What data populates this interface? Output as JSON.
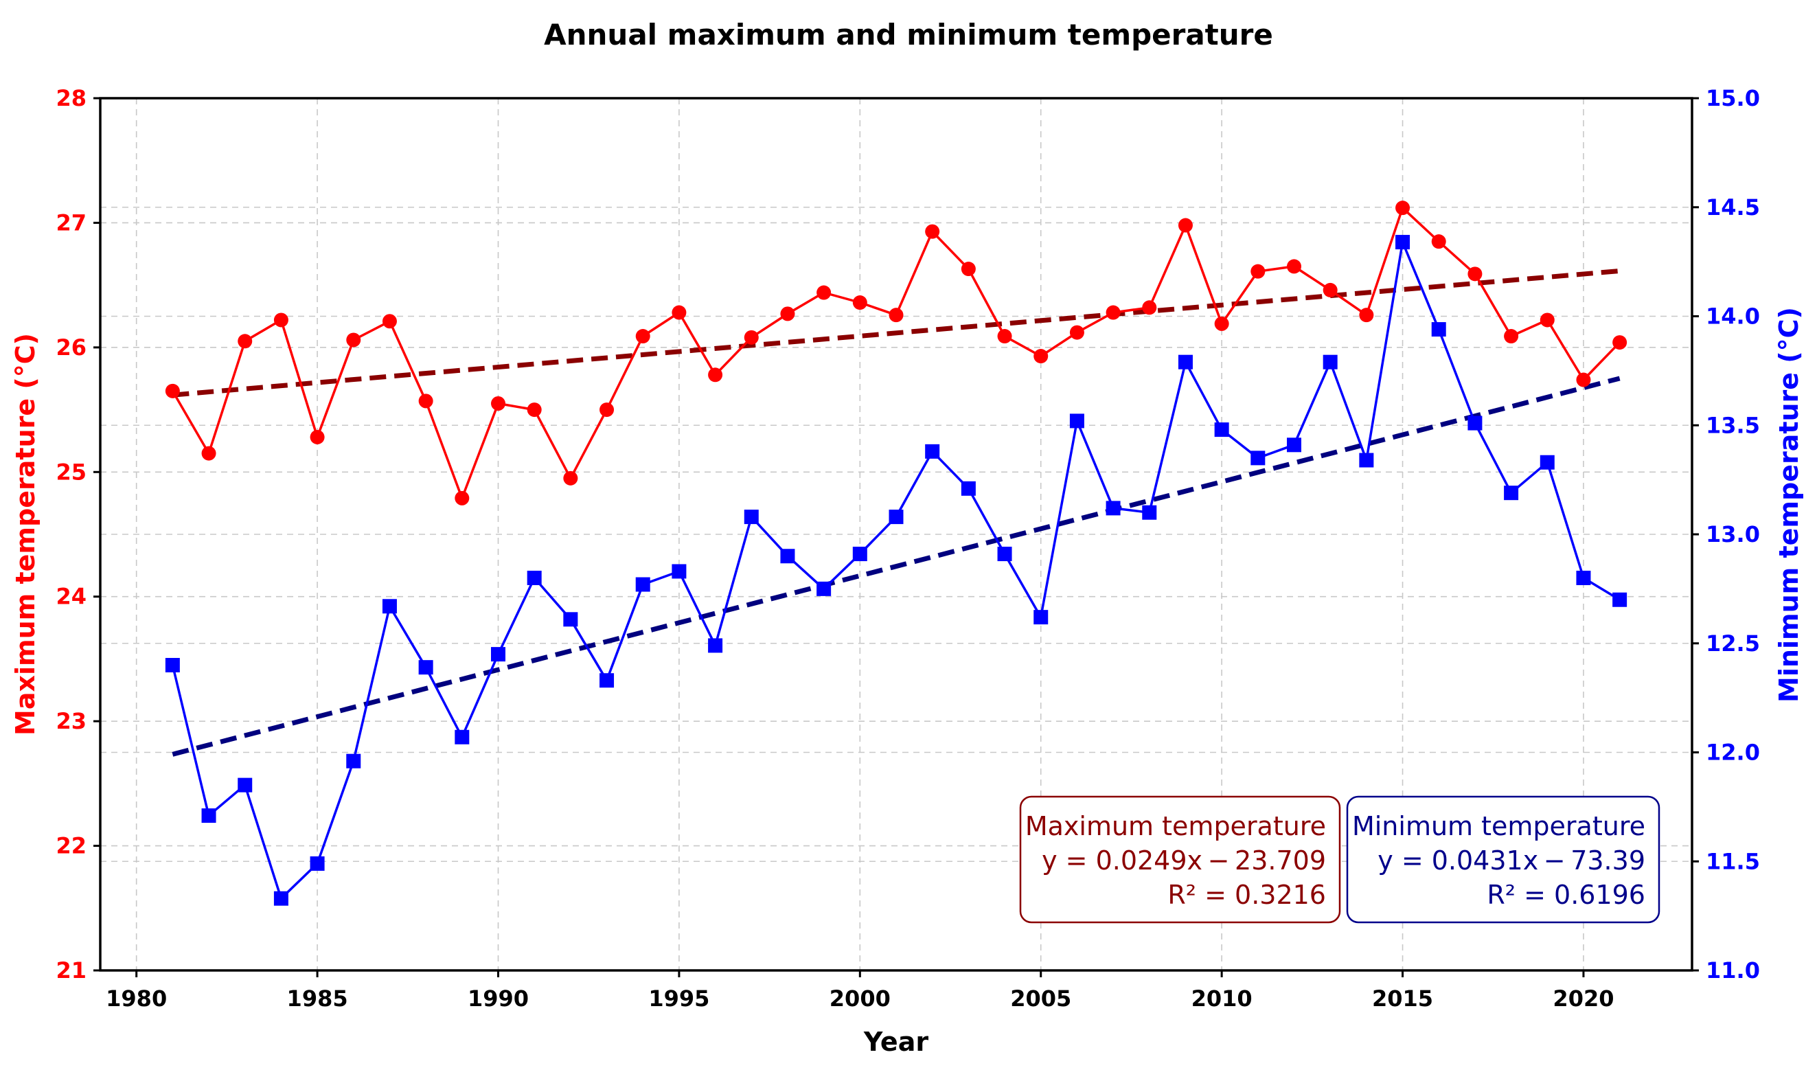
{
  "chart_data": {
    "type": "line",
    "title": "Annual maximum and minimum temperature",
    "xlabel": "Year",
    "ylabel_left": "Maximum temperature (°C)",
    "ylabel_right": "Minimum temperature (°C)",
    "xlim": [
      1979,
      2023
    ],
    "ylim_left": [
      21,
      28
    ],
    "ylim_right": [
      11.0,
      15.0
    ],
    "x_ticks": [
      1980,
      1985,
      1990,
      1995,
      2000,
      2005,
      2010,
      2015,
      2020
    ],
    "y_ticks_left": [
      "21",
      "22",
      "23",
      "24",
      "25",
      "26",
      "27",
      "28"
    ],
    "y_ticks_right": [
      "11.0",
      "11.5",
      "12.0",
      "12.5",
      "13.0",
      "13.5",
      "14.0",
      "14.5",
      "15.0"
    ],
    "grid": true,
    "years": [
      1981,
      1982,
      1983,
      1984,
      1985,
      1986,
      1987,
      1988,
      1989,
      1990,
      1991,
      1992,
      1993,
      1994,
      1995,
      1996,
      1997,
      1998,
      1999,
      2000,
      2001,
      2002,
      2003,
      2004,
      2005,
      2006,
      2007,
      2008,
      2009,
      2010,
      2011,
      2012,
      2013,
      2014,
      2015,
      2016,
      2017,
      2018,
      2019,
      2020,
      2021
    ],
    "series": [
      {
        "name": "Maximum temperature",
        "axis": "left",
        "color": "#ff0000",
        "marker": "circle",
        "values": [
          25.65,
          25.15,
          26.05,
          26.22,
          25.28,
          26.06,
          26.21,
          25.57,
          24.79,
          25.55,
          25.5,
          24.95,
          25.5,
          26.09,
          26.28,
          25.78,
          26.08,
          26.27,
          26.44,
          26.36,
          26.26,
          26.93,
          26.63,
          26.09,
          25.93,
          26.12,
          26.28,
          26.32,
          26.98,
          26.19,
          26.61,
          26.65,
          26.46,
          26.26,
          27.12,
          26.85,
          26.59,
          26.09,
          26.22,
          25.74,
          26.04
        ]
      },
      {
        "name": "Minimum temperature",
        "axis": "right",
        "color": "#0000ff",
        "marker": "square",
        "values": [
          12.4,
          11.71,
          11.85,
          11.33,
          11.49,
          11.96,
          12.67,
          12.39,
          12.07,
          12.45,
          12.8,
          12.61,
          12.33,
          12.77,
          12.83,
          12.49,
          13.08,
          12.9,
          12.75,
          12.91,
          13.08,
          13.38,
          13.21,
          12.91,
          12.62,
          13.52,
          13.12,
          13.1,
          13.79,
          13.48,
          13.35,
          13.41,
          13.79,
          13.34,
          14.34,
          13.94,
          13.51,
          13.19,
          13.33,
          12.8,
          12.7
        ]
      }
    ],
    "trendlines": [
      {
        "name": "Maximum temperature trend",
        "axis": "left",
        "color": "#8b0000",
        "slope": 0.0249,
        "intercept": -23.709,
        "x_range": [
          1981,
          2021
        ]
      },
      {
        "name": "Minimum temperature trend",
        "axis": "right",
        "color": "#00007f",
        "slope": 0.0431,
        "intercept": -73.39,
        "x_range": [
          1981,
          2021
        ]
      }
    ],
    "annotations": [
      {
        "title": "Maximum temperature",
        "equation": "y = 0.0249x − 23.709",
        "r2": "R² = 0.3216",
        "color": "#8b0000"
      },
      {
        "title": "Minimum temperature",
        "equation": "y = 0.0431x − 73.39",
        "r2": "R² = 0.6196",
        "color": "#00008b"
      }
    ]
  }
}
